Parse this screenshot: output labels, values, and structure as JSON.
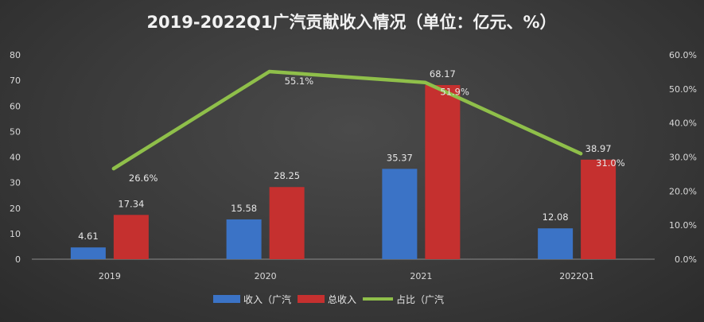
{
  "chart_data": {
    "type": "bar",
    "title": "2019-2022Q1广汽贡献收入情况（单位：亿元、%）",
    "categories": [
      "2019",
      "2020",
      "2021",
      "2022Q1"
    ],
    "series": [
      {
        "name": "收入（广汽",
        "kind": "bar",
        "axis": "left",
        "color": "#3b73c6",
        "values": [
          4.61,
          15.58,
          35.37,
          12.08
        ],
        "labels": [
          "4.61",
          "15.58",
          "35.37",
          "12.08"
        ]
      },
      {
        "name": "总收入",
        "kind": "bar",
        "axis": "left",
        "color": "#c5302f",
        "values": [
          17.34,
          28.25,
          68.17,
          38.97
        ],
        "labels": [
          "17.34",
          "28.25",
          "68.17",
          "38.97"
        ]
      },
      {
        "name": "占比（广汽",
        "kind": "line",
        "axis": "right",
        "color": "#8fbf4a",
        "values": [
          26.6,
          55.1,
          51.9,
          31.0
        ],
        "labels": [
          "26.6%",
          "55.1%",
          "51.9%",
          "31.0%"
        ]
      }
    ],
    "y_left": {
      "lim": [
        0,
        80
      ],
      "ticks": [
        "0",
        "10",
        "20",
        "30",
        "40",
        "50",
        "60",
        "70",
        "80"
      ]
    },
    "y_right": {
      "lim": [
        0,
        60
      ],
      "ticks": [
        "0.0%",
        "10.0%",
        "20.0%",
        "30.0%",
        "40.0%",
        "50.0%",
        "60.0%"
      ]
    },
    "grid": false,
    "legend": "bottom"
  }
}
